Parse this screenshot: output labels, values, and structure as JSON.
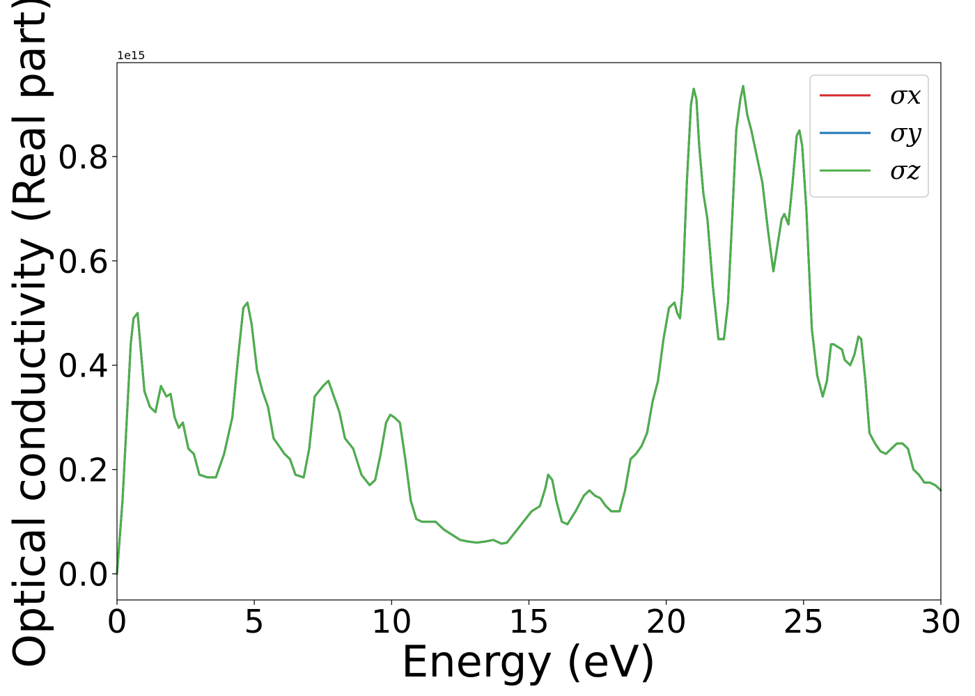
{
  "chart_data": {
    "type": "line",
    "title": "",
    "xlabel": "Energy (eV)",
    "ylabel": "Optical conductivity (Real part)",
    "y_offset_text": "1e15",
    "y_multiplier": 1000000000000000.0,
    "xlim": [
      0,
      30
    ],
    "ylim": [
      -0.05,
      0.98
    ],
    "xticks": [
      0,
      5,
      10,
      15,
      20,
      25,
      30
    ],
    "xtick_labels": [
      "0",
      "5",
      "10",
      "15",
      "20",
      "25",
      "30"
    ],
    "yticks": [
      0.0,
      0.2,
      0.4,
      0.6,
      0.8
    ],
    "ytick_labels": [
      "0.0",
      "0.2",
      "0.4",
      "0.6",
      "0.8"
    ],
    "grid": false,
    "legend_position": "top-right",
    "x": [
      0.0,
      0.2,
      0.4,
      0.5,
      0.6,
      0.75,
      0.85,
      1.0,
      1.2,
      1.4,
      1.6,
      1.8,
      1.95,
      2.1,
      2.25,
      2.4,
      2.6,
      2.8,
      3.0,
      3.3,
      3.6,
      3.9,
      4.2,
      4.4,
      4.6,
      4.75,
      4.9,
      5.1,
      5.3,
      5.5,
      5.7,
      5.9,
      6.1,
      6.3,
      6.5,
      6.8,
      7.0,
      7.2,
      7.5,
      7.7,
      7.9,
      8.1,
      8.3,
      8.6,
      8.9,
      9.2,
      9.4,
      9.6,
      9.8,
      9.95,
      10.1,
      10.3,
      10.5,
      10.7,
      10.9,
      11.1,
      11.3,
      11.6,
      11.9,
      12.2,
      12.5,
      12.8,
      13.1,
      13.4,
      13.7,
      14.0,
      14.2,
      14.5,
      14.8,
      15.1,
      15.4,
      15.6,
      15.7,
      15.85,
      16.0,
      16.2,
      16.4,
      16.7,
      17.0,
      17.2,
      17.4,
      17.6,
      17.8,
      18.0,
      18.3,
      18.5,
      18.7,
      18.9,
      19.1,
      19.3,
      19.5,
      19.7,
      19.9,
      20.1,
      20.3,
      20.4,
      20.5,
      20.6,
      20.75,
      20.9,
      21.0,
      21.1,
      21.2,
      21.35,
      21.5,
      21.7,
      21.9,
      22.1,
      22.25,
      22.4,
      22.55,
      22.7,
      22.8,
      22.95,
      23.1,
      23.3,
      23.5,
      23.7,
      23.9,
      24.05,
      24.2,
      24.3,
      24.45,
      24.6,
      24.75,
      24.85,
      24.95,
      25.1,
      25.3,
      25.5,
      25.7,
      25.85,
      26.0,
      26.1,
      26.25,
      26.4,
      26.5,
      26.7,
      26.85,
      27.0,
      27.1,
      27.25,
      27.4,
      27.6,
      27.8,
      28.0,
      28.2,
      28.4,
      28.6,
      28.8,
      29.0,
      29.2,
      29.4,
      29.6,
      29.8,
      30.0
    ],
    "series": [
      {
        "name": "σx",
        "color": "#d62728",
        "values": [
          0.0,
          0.14,
          0.34,
          0.44,
          0.49,
          0.5,
          0.44,
          0.35,
          0.32,
          0.31,
          0.36,
          0.34,
          0.345,
          0.3,
          0.28,
          0.29,
          0.24,
          0.23,
          0.19,
          0.185,
          0.185,
          0.23,
          0.3,
          0.41,
          0.51,
          0.52,
          0.48,
          0.39,
          0.35,
          0.32,
          0.26,
          0.245,
          0.23,
          0.22,
          0.19,
          0.185,
          0.24,
          0.34,
          0.36,
          0.37,
          0.34,
          0.31,
          0.26,
          0.24,
          0.19,
          0.17,
          0.18,
          0.23,
          0.29,
          0.305,
          0.3,
          0.29,
          0.22,
          0.14,
          0.105,
          0.1,
          0.1,
          0.1,
          0.085,
          0.075,
          0.065,
          0.062,
          0.06,
          0.062,
          0.065,
          0.058,
          0.06,
          0.08,
          0.1,
          0.12,
          0.13,
          0.165,
          0.19,
          0.18,
          0.14,
          0.1,
          0.095,
          0.12,
          0.15,
          0.16,
          0.15,
          0.145,
          0.13,
          0.12,
          0.12,
          0.16,
          0.22,
          0.23,
          0.245,
          0.27,
          0.33,
          0.37,
          0.45,
          0.51,
          0.52,
          0.5,
          0.49,
          0.55,
          0.75,
          0.9,
          0.93,
          0.91,
          0.82,
          0.73,
          0.68,
          0.55,
          0.45,
          0.45,
          0.52,
          0.68,
          0.85,
          0.91,
          0.935,
          0.88,
          0.85,
          0.8,
          0.75,
          0.66,
          0.58,
          0.63,
          0.68,
          0.69,
          0.67,
          0.75,
          0.84,
          0.85,
          0.82,
          0.7,
          0.47,
          0.38,
          0.34,
          0.37,
          0.44,
          0.44,
          0.435,
          0.43,
          0.41,
          0.4,
          0.42,
          0.455,
          0.45,
          0.37,
          0.27,
          0.25,
          0.235,
          0.23,
          0.24,
          0.25,
          0.25,
          0.24,
          0.2,
          0.19,
          0.175,
          0.175,
          0.17,
          0.16
        ]
      },
      {
        "name": "σy",
        "color": "#1f77b4",
        "values": [
          0.0,
          0.14,
          0.34,
          0.44,
          0.49,
          0.5,
          0.44,
          0.35,
          0.32,
          0.31,
          0.36,
          0.34,
          0.345,
          0.3,
          0.28,
          0.29,
          0.24,
          0.23,
          0.19,
          0.185,
          0.185,
          0.23,
          0.3,
          0.41,
          0.51,
          0.52,
          0.48,
          0.39,
          0.35,
          0.32,
          0.26,
          0.245,
          0.23,
          0.22,
          0.19,
          0.185,
          0.24,
          0.34,
          0.36,
          0.37,
          0.34,
          0.31,
          0.26,
          0.24,
          0.19,
          0.17,
          0.18,
          0.23,
          0.29,
          0.305,
          0.3,
          0.29,
          0.22,
          0.14,
          0.105,
          0.1,
          0.1,
          0.1,
          0.085,
          0.075,
          0.065,
          0.062,
          0.06,
          0.062,
          0.065,
          0.058,
          0.06,
          0.08,
          0.1,
          0.12,
          0.13,
          0.165,
          0.19,
          0.18,
          0.14,
          0.1,
          0.095,
          0.12,
          0.15,
          0.16,
          0.15,
          0.145,
          0.13,
          0.12,
          0.12,
          0.16,
          0.22,
          0.23,
          0.245,
          0.27,
          0.33,
          0.37,
          0.45,
          0.51,
          0.52,
          0.5,
          0.49,
          0.55,
          0.75,
          0.9,
          0.93,
          0.91,
          0.82,
          0.73,
          0.68,
          0.55,
          0.45,
          0.45,
          0.52,
          0.68,
          0.85,
          0.91,
          0.935,
          0.88,
          0.85,
          0.8,
          0.75,
          0.66,
          0.58,
          0.63,
          0.68,
          0.69,
          0.67,
          0.75,
          0.84,
          0.85,
          0.82,
          0.7,
          0.47,
          0.38,
          0.34,
          0.37,
          0.44,
          0.44,
          0.435,
          0.43,
          0.41,
          0.4,
          0.42,
          0.455,
          0.45,
          0.37,
          0.27,
          0.25,
          0.235,
          0.23,
          0.24,
          0.25,
          0.25,
          0.24,
          0.2,
          0.19,
          0.175,
          0.175,
          0.17,
          0.16
        ]
      },
      {
        "name": "σz",
        "color": "#4daf4a",
        "values": [
          0.0,
          0.14,
          0.34,
          0.44,
          0.49,
          0.5,
          0.44,
          0.35,
          0.32,
          0.31,
          0.36,
          0.34,
          0.345,
          0.3,
          0.28,
          0.29,
          0.24,
          0.23,
          0.19,
          0.185,
          0.185,
          0.23,
          0.3,
          0.41,
          0.51,
          0.52,
          0.48,
          0.39,
          0.35,
          0.32,
          0.26,
          0.245,
          0.23,
          0.22,
          0.19,
          0.185,
          0.24,
          0.34,
          0.36,
          0.37,
          0.34,
          0.31,
          0.26,
          0.24,
          0.19,
          0.17,
          0.18,
          0.23,
          0.29,
          0.305,
          0.3,
          0.29,
          0.22,
          0.14,
          0.105,
          0.1,
          0.1,
          0.1,
          0.085,
          0.075,
          0.065,
          0.062,
          0.06,
          0.062,
          0.065,
          0.058,
          0.06,
          0.08,
          0.1,
          0.12,
          0.13,
          0.165,
          0.19,
          0.18,
          0.14,
          0.1,
          0.095,
          0.12,
          0.15,
          0.16,
          0.15,
          0.145,
          0.13,
          0.12,
          0.12,
          0.16,
          0.22,
          0.23,
          0.245,
          0.27,
          0.33,
          0.37,
          0.45,
          0.51,
          0.52,
          0.5,
          0.49,
          0.55,
          0.75,
          0.9,
          0.93,
          0.91,
          0.82,
          0.73,
          0.68,
          0.55,
          0.45,
          0.45,
          0.52,
          0.68,
          0.85,
          0.91,
          0.935,
          0.88,
          0.85,
          0.8,
          0.75,
          0.66,
          0.58,
          0.63,
          0.68,
          0.69,
          0.67,
          0.75,
          0.84,
          0.85,
          0.82,
          0.7,
          0.47,
          0.38,
          0.34,
          0.37,
          0.44,
          0.44,
          0.435,
          0.43,
          0.41,
          0.4,
          0.42,
          0.455,
          0.45,
          0.37,
          0.27,
          0.25,
          0.235,
          0.23,
          0.24,
          0.25,
          0.25,
          0.24,
          0.2,
          0.19,
          0.175,
          0.175,
          0.17,
          0.16
        ]
      }
    ]
  }
}
